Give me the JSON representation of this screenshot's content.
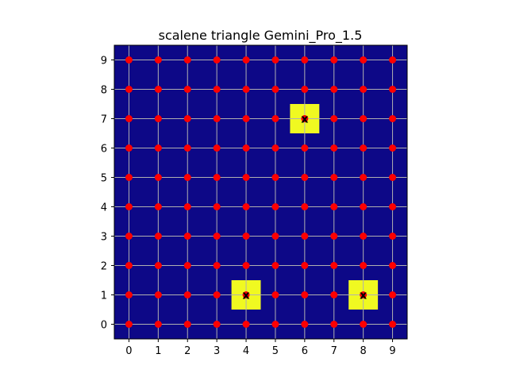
{
  "chart_data": {
    "type": "scatter",
    "title": "scalene triangle Gemini_Pro_1.5",
    "xlabel": "",
    "ylabel": "",
    "xlim": [
      -0.5,
      9.5
    ],
    "ylim": [
      -0.5,
      9.5
    ],
    "x_ticks": [
      "0",
      "1",
      "2",
      "3",
      "4",
      "5",
      "6",
      "7",
      "8",
      "9"
    ],
    "y_ticks": [
      "0",
      "1",
      "2",
      "3",
      "4",
      "5",
      "6",
      "7",
      "8",
      "9"
    ],
    "grid": true,
    "background_color": "#0d0887",
    "cell_highlight_color": "#f0f921",
    "point_color": "#ff0000",
    "grid_color": "#b0b0b0",
    "points_grid": {
      "x_values": [
        0,
        1,
        2,
        3,
        4,
        5,
        6,
        7,
        8,
        9
      ],
      "y_values": [
        0,
        1,
        2,
        3,
        4,
        5,
        6,
        7,
        8,
        9
      ]
    },
    "highlighted_cells": [
      {
        "x": 6,
        "y": 7,
        "label": "x"
      },
      {
        "x": 4,
        "y": 1,
        "label": "x"
      },
      {
        "x": 8,
        "y": 1,
        "label": "x"
      }
    ]
  }
}
